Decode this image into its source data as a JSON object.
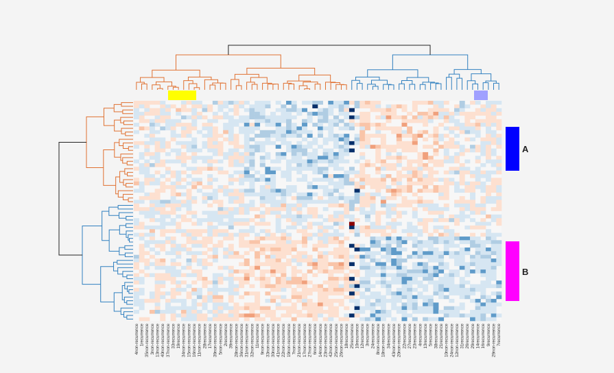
{
  "chart_data": {
    "type": "heatmap",
    "title": "",
    "column_labels": [
      "4non-recurrence",
      "1recurrence",
      "35non-recurrence",
      "3non-recurrence",
      "13non-recurrence",
      "40non-recurrence",
      "37non-recurrence",
      "33recurrence",
      "19recurrence",
      "34non-recurrence",
      "15non-recurrence",
      "16non-recurrence",
      "11non-recurrence",
      "28recurrence",
      "17recurrence",
      "39non-recurrence",
      "5non-recurrence",
      "2recurrence",
      "39recurrence",
      "28non-recurrence",
      "36non-recurrence",
      "31non-recurrence",
      "32non-recurrence",
      "11recurrence",
      "9non-recurrence",
      "33non-recurrence",
      "30non-recurrence",
      "41non-recurrence",
      "22non-recurrence",
      "19non-recurrence",
      "7non-recurrence",
      "21non-recurrence",
      "17non-recurrence",
      "27non-recurrence",
      "6non-recurrence",
      "14non-recurrence",
      "23non-recurrence",
      "42non-recurrence",
      "25non-recurrence",
      "26non-recurrence",
      "18recurrence",
      "25recurrence",
      "10recurrence",
      "12recurrence",
      "3recurrence",
      "24recurrence",
      "8non-recurrence",
      "18non-recurrence",
      "34recurrence",
      "43non-recurrence",
      "20non-recurrence",
      "22recurrence",
      "27recurrence",
      "23recurrence",
      "4recurrence",
      "13recurrence",
      "5recurrence",
      "38recurrence",
      "21recurrence",
      "10non-recurrence",
      "24non-recurrence",
      "12non-recurrence",
      "31recurrence",
      "26recurrence",
      "29recurrence",
      "14recurrence",
      "16recurrence",
      "9recurrence",
      "29non-recurrence",
      "7recurrence"
    ],
    "row_groups": [
      "A",
      "B"
    ],
    "group_colors": {
      "A": "#0000ff",
      "B": "#ff00ff",
      "col_cluster_1": "#ffff00",
      "col_cluster_2": "#a0a0ff"
    },
    "dendrogram_colors": [
      "#e07030",
      "#2f7fbf",
      "#222222"
    ],
    "color_scale": {
      "negative": "#08306b",
      "neutral": "#f4f4f4",
      "positive": "#8b0000"
    },
    "legend": "none",
    "grid": false
  }
}
